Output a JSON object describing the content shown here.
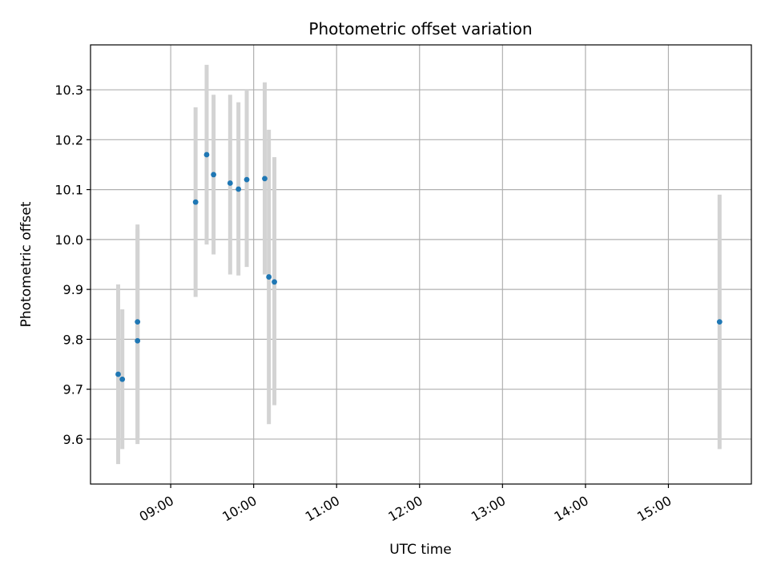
{
  "chart_data": {
    "type": "scatter",
    "title": "Photometric offset variation",
    "xlabel": "UTC time",
    "ylabel": "Photometric offset",
    "x_axis_kind": "time",
    "xlim": [
      "08:02",
      "16:00"
    ],
    "ylim": [
      9.51,
      10.39
    ],
    "x_ticks": [
      "09:00",
      "10:00",
      "11:00",
      "12:00",
      "13:00",
      "14:00",
      "15:00"
    ],
    "y_ticks": [
      "9.6",
      "9.7",
      "9.8",
      "9.9",
      "10.0",
      "10.1",
      "10.2",
      "10.3"
    ],
    "grid": true,
    "point_color": "#1f77b4",
    "errorbar_color": "#d3d3d3",
    "points": [
      {
        "x": "08:22",
        "y": 9.73,
        "y_low": 9.55,
        "y_high": 9.91
      },
      {
        "x": "08:25",
        "y": 9.72,
        "y_low": 9.58,
        "y_high": 9.86
      },
      {
        "x": "08:36",
        "y": 9.835,
        "y_low": 9.6,
        "y_high": 10.02
      },
      {
        "x": "08:36",
        "y": 9.797,
        "y_low": 9.59,
        "y_high": 10.03
      },
      {
        "x": "09:18",
        "y": 10.075,
        "y_low": 9.885,
        "y_high": 10.265
      },
      {
        "x": "09:26",
        "y": 10.17,
        "y_low": 9.99,
        "y_high": 10.35
      },
      {
        "x": "09:31",
        "y": 10.13,
        "y_low": 9.97,
        "y_high": 10.29
      },
      {
        "x": "09:43",
        "y": 10.113,
        "y_low": 9.93,
        "y_high": 10.29
      },
      {
        "x": "09:49",
        "y": 10.101,
        "y_low": 9.928,
        "y_high": 10.275
      },
      {
        "x": "09:55",
        "y": 10.12,
        "y_low": 9.945,
        "y_high": 10.3
      },
      {
        "x": "10:08",
        "y": 10.122,
        "y_low": 9.93,
        "y_high": 10.315
      },
      {
        "x": "10:11",
        "y": 9.925,
        "y_low": 9.63,
        "y_high": 10.22
      },
      {
        "x": "10:15",
        "y": 9.915,
        "y_low": 9.668,
        "y_high": 10.165
      },
      {
        "x": "15:37",
        "y": 9.835,
        "y_low": 9.58,
        "y_high": 10.09
      }
    ]
  }
}
